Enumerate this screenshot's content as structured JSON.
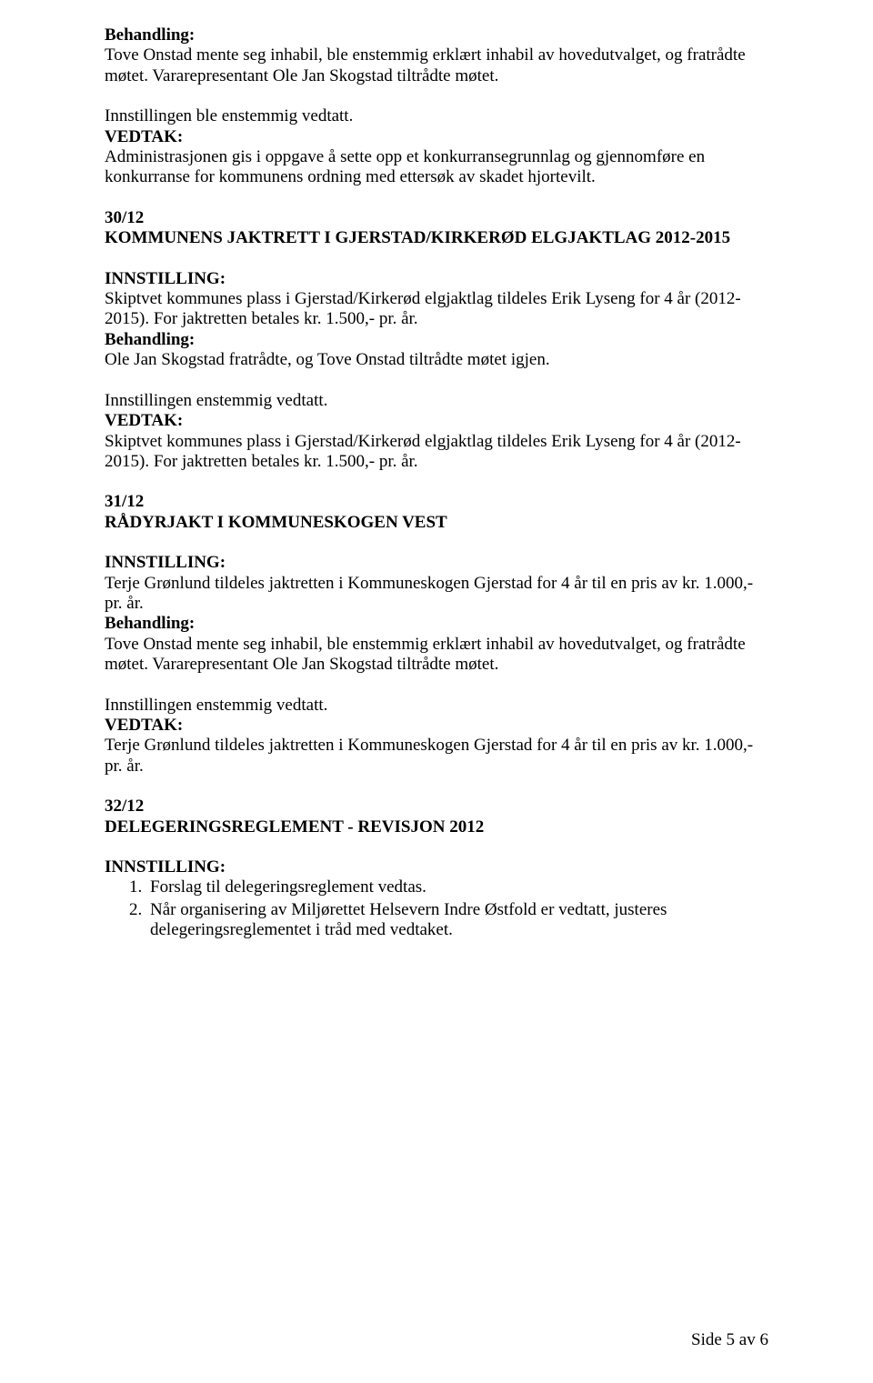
{
  "behandling_label": "Behandling:",
  "vedtak_label": "VEDTAK:",
  "innstilling_label": "INNSTILLING:",
  "s1_behandling_body": "Tove Onstad mente seg inhabil, ble enstemmig erklært inhabil av hovedutvalget, og fratrådte møtet. Vararepresentant Ole Jan Skogstad tiltrådte møtet.",
  "s1_inst_ble": "Innstillingen ble enstemmig vedtatt.",
  "s1_vedtak_body": "Administrasjonen gis i oppgave å sette opp et konkurransegrunnlag og gjennomføre en konkurranse for kommunens ordning med ettersøk av skadet hjortevilt.",
  "s2_num": "30/12",
  "s2_title": "KOMMUNENS JAKTRETT I GJERSTAD/KIRKERØD ELGJAKTLAG 2012-2015",
  "s2_innstilling_body": "Skiptvet kommunes plass i Gjerstad/Kirkerød elgjaktlag tildeles Erik Lyseng for 4 år (2012-2015). For jaktretten betales kr. 1.500,- pr. år.",
  "s2_behandling_body": "Ole Jan Skogstad fratrådte, og Tove Onstad tiltrådte møtet igjen.",
  "s2_inst_enst": "Innstillingen enstemmig vedtatt.",
  "s2_vedtak_body": "Skiptvet kommunes plass i Gjerstad/Kirkerød elgjaktlag tildeles Erik Lyseng for 4 år (2012-2015). For jaktretten betales kr. 1.500,- pr. år.",
  "s3_num": "31/12",
  "s3_title": "RÅDYRJAKT I KOMMUNESKOGEN VEST",
  "s3_innstilling_body": "Terje Grønlund tildeles jaktretten i Kommuneskogen Gjerstad for 4 år til en pris av kr. 1.000,- pr. år.",
  "s3_behandling_body": "Tove Onstad mente seg inhabil, ble enstemmig erklært inhabil av hovedutvalget, og fratrådte møtet. Vararepresentant Ole Jan Skogstad tiltrådte møtet.",
  "s3_inst_enst": "Innstillingen enstemmig vedtatt.",
  "s3_vedtak_body": "Terje Grønlund tildeles jaktretten i Kommuneskogen Gjerstad for 4 år til en pris av kr. 1.000,- pr. år.",
  "s4_num": "32/12",
  "s4_title": "DELEGERINGSREGLEMENT - REVISJON 2012",
  "s4_item1": "Forslag til delegeringsreglement vedtas.",
  "s4_item2": "Når organisering av Miljørettet Helsevern Indre Østfold er vedtatt, justeres delegeringsreglementet i tråd med vedtaket.",
  "footer": "Side 5 av 6"
}
